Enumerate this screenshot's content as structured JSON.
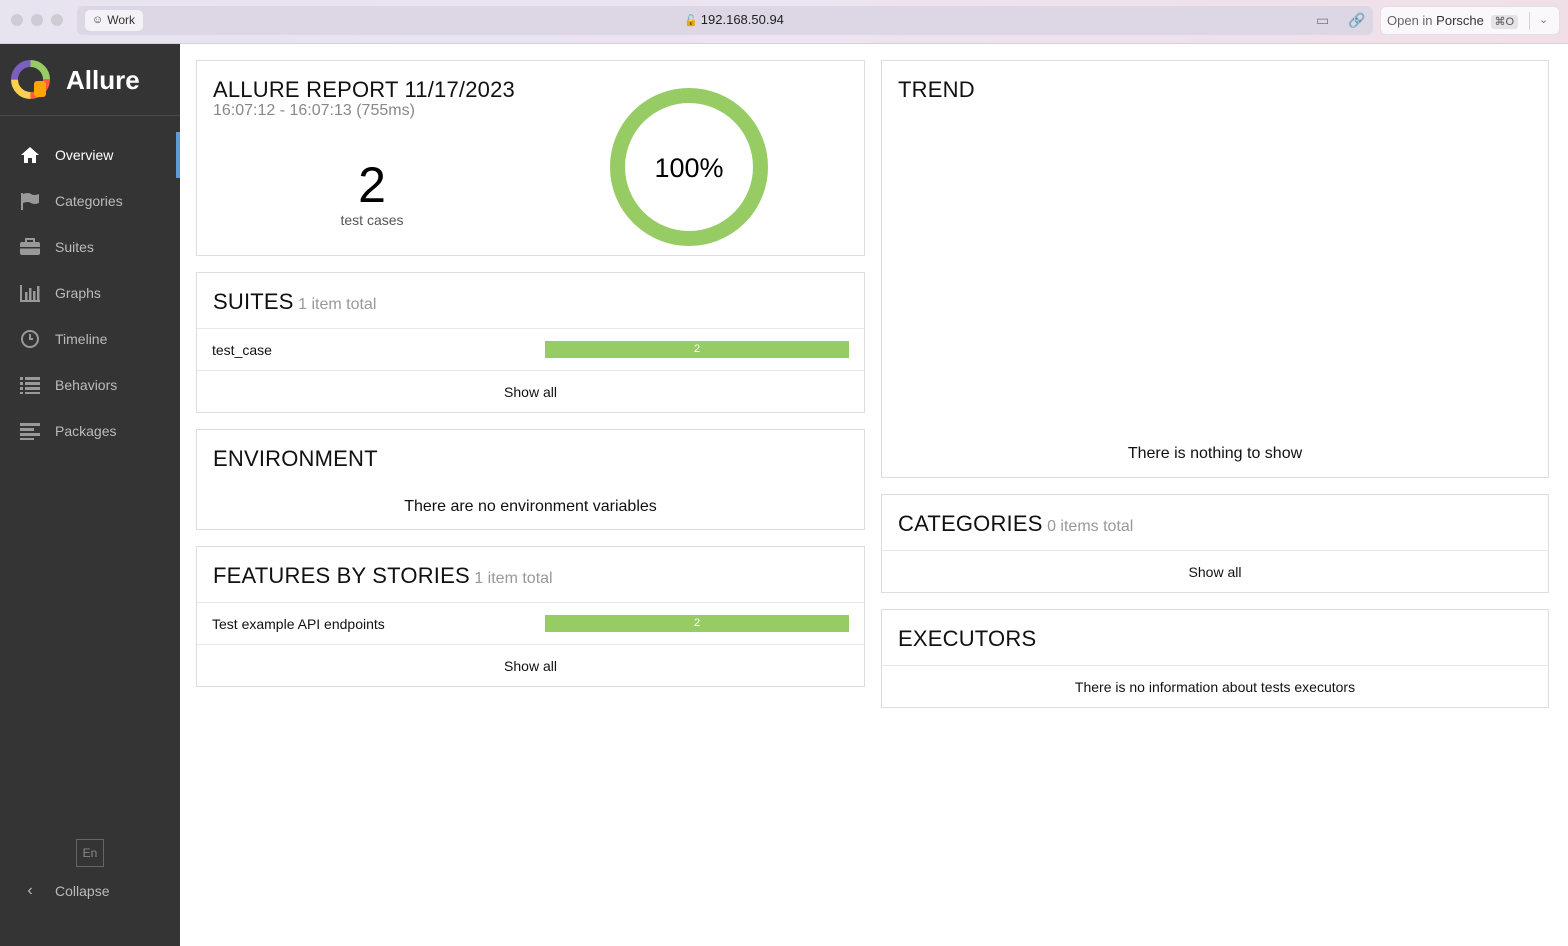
{
  "browser": {
    "profile_label": "Work",
    "url": "192.168.50.94",
    "open_in_prefix": "Open in",
    "open_in_target": "Porsche",
    "open_in_shortcut": "⌘O"
  },
  "sidebar": {
    "brand": "Allure",
    "items": [
      {
        "label": "Overview",
        "icon": "home-icon",
        "active": true
      },
      {
        "label": "Categories",
        "icon": "flag-icon"
      },
      {
        "label": "Suites",
        "icon": "briefcase-icon"
      },
      {
        "label": "Graphs",
        "icon": "bar-chart-icon"
      },
      {
        "label": "Timeline",
        "icon": "clock-icon"
      },
      {
        "label": "Behaviors",
        "icon": "list-icon"
      },
      {
        "label": "Packages",
        "icon": "align-left-icon"
      }
    ],
    "language": "En",
    "collapse_label": "Collapse"
  },
  "summary": {
    "title": "ALLURE REPORT 11/17/2023",
    "time_range": "16:07:12 - 16:07:13 (755ms)",
    "test_count": "2",
    "test_count_label": "test cases",
    "success_rate": "100%",
    "success_fraction": 1.0,
    "ring_color": "#97cc64"
  },
  "suites": {
    "title": "SUITES",
    "subtitle": "1 item total",
    "rows": [
      {
        "name": "test_case",
        "passed": "2"
      }
    ],
    "show_all": "Show all"
  },
  "environment": {
    "title": "ENVIRONMENT",
    "message": "There are no environment variables"
  },
  "features": {
    "title": "FEATURES BY STORIES",
    "subtitle": "1 item total",
    "rows": [
      {
        "name": "Test example API endpoints",
        "passed": "2"
      }
    ],
    "show_all": "Show all"
  },
  "trend": {
    "title": "TREND",
    "message": "There is nothing to show"
  },
  "categories": {
    "title": "CATEGORIES",
    "subtitle": "0 items total",
    "show_all": "Show all"
  },
  "executors": {
    "title": "EXECUTORS",
    "message": "There is no information about tests executors"
  }
}
